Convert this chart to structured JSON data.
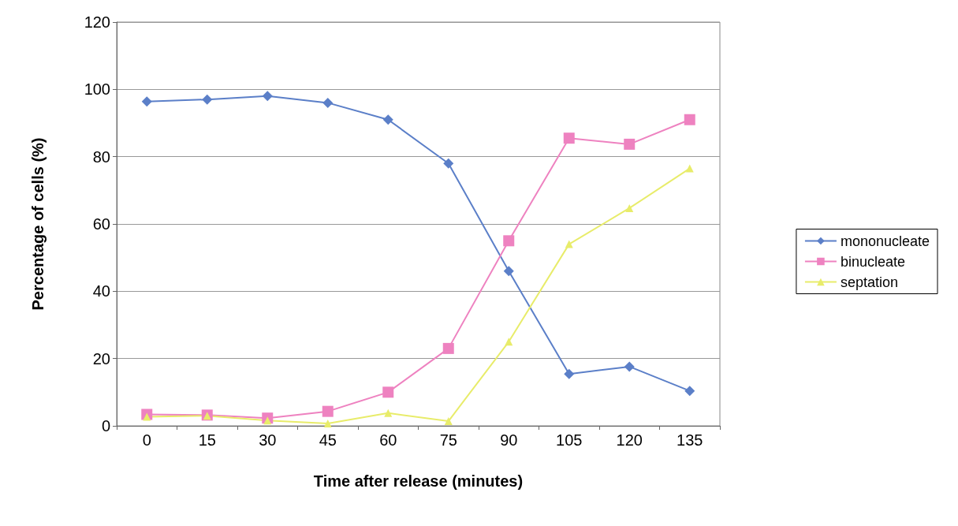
{
  "chart_data": {
    "type": "line",
    "xlabel": "Time after release (minutes)",
    "ylabel": "Percentage of cells (%)",
    "categories": [
      "0",
      "15",
      "30",
      "45",
      "60",
      "75",
      "90",
      "105",
      "120",
      "135"
    ],
    "series": [
      {
        "name": "mononucleate",
        "color": "#5b7fc8",
        "marker": "diamond",
        "values": [
          96.4,
          97,
          98,
          96,
          91,
          78,
          46,
          15.4,
          17.6,
          10.4
        ]
      },
      {
        "name": "binucleate",
        "color": "#ee82c0",
        "marker": "square",
        "values": [
          3.4,
          3.2,
          2.3,
          4.3,
          10,
          23,
          55,
          85.5,
          83.7,
          91
        ]
      },
      {
        "name": "septation",
        "color": "#e8ec6a",
        "marker": "triangle",
        "values": [
          2.7,
          3,
          1.6,
          0.7,
          3.8,
          1.4,
          25,
          54,
          64.7,
          76.5
        ]
      }
    ],
    "ylim": [
      0,
      120
    ],
    "yticks": [
      0,
      20,
      40,
      60,
      80,
      100,
      120
    ],
    "grid": "y",
    "legend": "right",
    "line_style": "solid"
  }
}
